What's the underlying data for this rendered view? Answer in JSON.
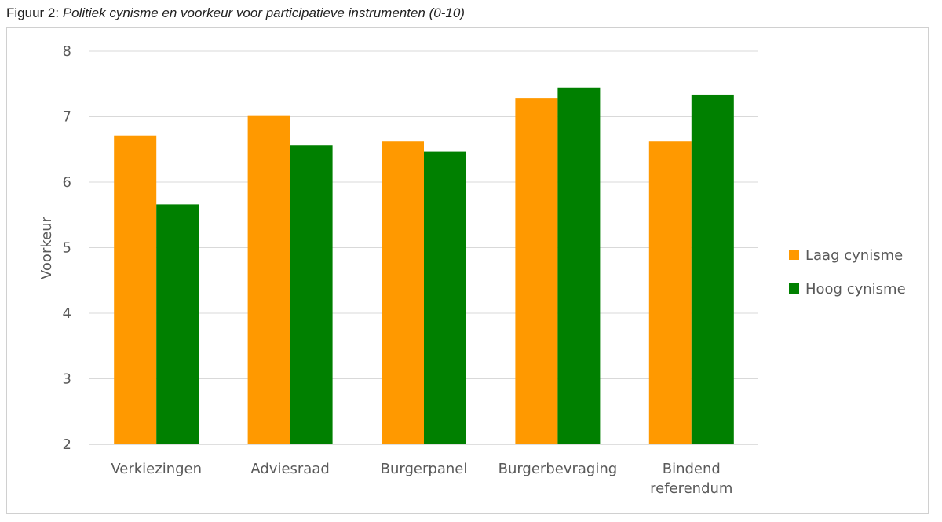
{
  "caption": {
    "prefix": "Figuur 2: ",
    "title": "Politiek cynisme en voorkeur voor participatieve instrumenten (0-10)"
  },
  "chart_data": {
    "type": "bar",
    "title": "Politiek cynisme en voorkeur voor participatieve instrumenten (0-10)",
    "xlabel": "",
    "ylabel": "Voorkeur",
    "ylim": [
      2,
      8
    ],
    "yticks": [
      2,
      3,
      4,
      5,
      6,
      7,
      8
    ],
    "grid": true,
    "legend_position": "right",
    "categories": [
      [
        "Verkiezingen"
      ],
      [
        "Adviesraad"
      ],
      [
        "Burgerpanel"
      ],
      [
        "Burgerbevraging"
      ],
      [
        "Bindend",
        "referendum"
      ]
    ],
    "series": [
      {
        "name": "Laag cynisme",
        "color": "#FF9900",
        "values": [
          6.71,
          7.01,
          6.62,
          7.28,
          6.62
        ]
      },
      {
        "name": "Hoog cynisme",
        "color": "#008000",
        "values": [
          5.66,
          6.56,
          6.46,
          7.44,
          7.33
        ]
      }
    ]
  }
}
